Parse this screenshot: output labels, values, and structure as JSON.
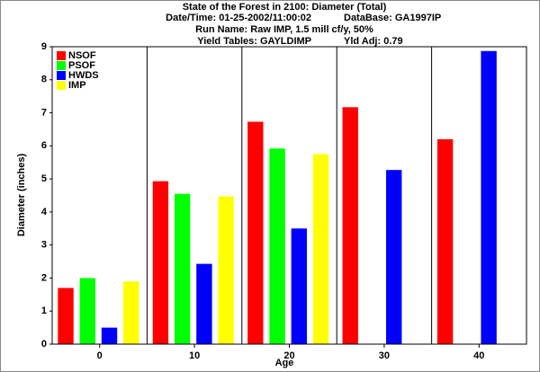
{
  "chart_data": {
    "type": "bar",
    "title": "State of the Forest in 2100: Diameter (Total)",
    "info_rows": [
      [
        "Date/Time: 01-25-2002/11:00:02",
        "DataBase: GA1997IP"
      ],
      [
        "Run Name: Raw IMP, 1.5 mill cf/y, 50%"
      ],
      [
        "Yield Tables: GAYLDIMP",
        "Yld Adj: 0.79"
      ]
    ],
    "x_label": "Age",
    "y_label": "Diameter (inches)",
    "categories": [
      "0",
      "10",
      "20",
      "30",
      "40"
    ],
    "series": [
      {
        "name": "NSOF",
        "color": "#ff0000",
        "values": [
          1.7,
          4.93,
          6.73,
          7.17,
          6.2
        ]
      },
      {
        "name": "PSOF",
        "color": "#00ff00",
        "values": [
          2.0,
          4.55,
          5.92,
          null,
          null
        ]
      },
      {
        "name": "HWDS",
        "color": "#0000ff",
        "values": [
          0.5,
          2.43,
          3.5,
          5.27,
          8.87
        ]
      },
      {
        "name": "IMP",
        "color": "#ffff00",
        "values": [
          1.9,
          4.47,
          5.75,
          null,
          null
        ]
      }
    ],
    "ylim": [
      0,
      9
    ],
    "yticks": [
      0,
      1,
      2,
      3,
      4,
      5,
      6,
      7,
      8,
      9
    ],
    "legend": "upper-left"
  }
}
